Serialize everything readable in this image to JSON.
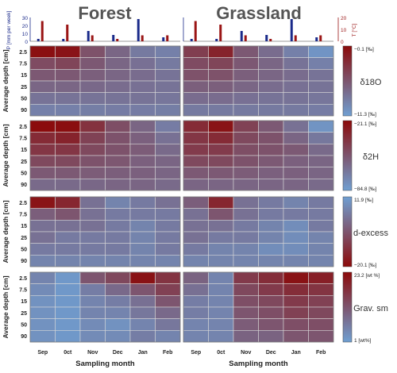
{
  "figure": {
    "panel_titles": [
      "Forest",
      "Grassland"
    ],
    "y_axis_label": "Average depth [cm]",
    "x_axis_label": "Sampling month",
    "x_ticks": [
      "Sep",
      "0ct",
      "Nov",
      "Dec",
      "Jan",
      "Feb"
    ],
    "depth_ticks": [
      "2.5",
      "7.5",
      "15",
      "25",
      "50",
      "90"
    ]
  },
  "colors": {
    "high": "#8b0a0a",
    "low": "#6f9fd2",
    "precip_bar": "#1a2a8a",
    "temp_bar": "#9a1515",
    "grid": "#d8d8d8"
  },
  "chart_data": [
    {
      "type": "bar",
      "panel": "Forest",
      "categories": [
        "Sep",
        "0ct",
        "Nov",
        "Dec",
        "Jan",
        "Feb"
      ],
      "ylabel": "P [mm per week]",
      "ylabel_right": "T [°C]",
      "y_ticks": [
        "30",
        "20",
        "10",
        "0"
      ],
      "y2_ticks": [
        "20",
        "10",
        "0"
      ],
      "series": [
        {
          "name": "P",
          "values": [
            3,
            3,
            13,
            8,
            28,
            5
          ]
        },
        {
          "name": "T",
          "values": [
            17,
            14,
            5,
            2,
            5,
            5
          ]
        }
      ]
    },
    {
      "type": "bar",
      "panel": "Grassland",
      "categories": [
        "Sep",
        "0ct",
        "Nov",
        "Dec",
        "Jan",
        "Feb"
      ],
      "ylabel": "",
      "ylabel_right": "T [°C]",
      "y_ticks": [],
      "y2_ticks": [
        "20",
        "10",
        "0"
      ],
      "series": [
        {
          "name": "P",
          "values": [
            3,
            3,
            13,
            8,
            28,
            5
          ]
        },
        {
          "name": "T",
          "values": [
            17,
            14,
            5,
            2,
            5,
            5
          ]
        }
      ]
    },
    {
      "type": "heatmap",
      "variable": "δ18O",
      "colorbar_title": "δ18O",
      "colorbar_max_label": "−0.1 [‰]",
      "colorbar_min_label": "−11.3 [‰]",
      "color_reversed": false,
      "rows": [
        "2.5",
        "7.5",
        "15",
        "25",
        "50",
        "90"
      ],
      "columns": [
        "Sep",
        "0ct",
        "Nov",
        "Dec",
        "Jan",
        "Feb"
      ],
      "forest": [
        [
          -0.5,
          -0.8,
          -5.5,
          -7.0,
          -8.5,
          -9.0
        ],
        [
          -5.0,
          -4.5,
          -6.0,
          -7.0,
          -7.8,
          -8.5
        ],
        [
          -6.0,
          -6.0,
          -6.5,
          -7.0,
          -7.5,
          -8.0
        ],
        [
          -7.0,
          -7.0,
          -7.2,
          -7.5,
          -7.8,
          -8.0
        ],
        [
          -8.0,
          -8.0,
          -8.0,
          -8.0,
          -8.0,
          -8.2
        ],
        [
          -9.0,
          -9.0,
          -8.8,
          -8.7,
          -8.7,
          -8.8
        ]
      ],
      "grassland": [
        [
          -4.0,
          -2.0,
          -6.0,
          -7.5,
          -9.0,
          -10.5
        ],
        [
          -5.0,
          -4.5,
          -6.0,
          -7.0,
          -8.0,
          -9.0
        ],
        [
          -5.5,
          -5.5,
          -6.5,
          -7.0,
          -7.5,
          -8.0
        ],
        [
          -6.5,
          -6.5,
          -7.0,
          -7.5,
          -7.8,
          -8.0
        ],
        [
          -7.5,
          -7.5,
          -7.8,
          -8.0,
          -8.0,
          -8.2
        ],
        [
          -8.5,
          -8.5,
          -8.5,
          -8.5,
          -8.5,
          -8.7
        ]
      ]
    },
    {
      "type": "heatmap",
      "variable": "δ2H",
      "colorbar_title": "δ2H",
      "colorbar_max_label": "−21.1 [‰]",
      "colorbar_min_label": "−84.8 [‰]",
      "color_reversed": false,
      "rows": [
        "2.5",
        "7.5",
        "15",
        "25",
        "50",
        "90"
      ],
      "columns": [
        "Sep",
        "0ct",
        "Nov",
        "Dec",
        "Jan",
        "Feb"
      ],
      "forest": [
        [
          -22,
          -23,
          -38,
          -50,
          -60,
          -70
        ],
        [
          -35,
          -32,
          -45,
          -52,
          -58,
          -65
        ],
        [
          -40,
          -40,
          -48,
          -52,
          -56,
          -62
        ],
        [
          -48,
          -48,
          -52,
          -54,
          -58,
          -60
        ],
        [
          -55,
          -55,
          -56,
          -57,
          -58,
          -60
        ],
        [
          -62,
          -62,
          -61,
          -60,
          -60,
          -62
        ]
      ],
      "grassland": [
        [
          -35,
          -25,
          -45,
          -55,
          -65,
          -80
        ],
        [
          -40,
          -35,
          -48,
          -52,
          -60,
          -68
        ],
        [
          -42,
          -42,
          -50,
          -52,
          -55,
          -62
        ],
        [
          -48,
          -48,
          -52,
          -55,
          -58,
          -60
        ],
        [
          -55,
          -55,
          -56,
          -58,
          -58,
          -60
        ],
        [
          -60,
          -60,
          -60,
          -60,
          -60,
          -62
        ]
      ]
    },
    {
      "type": "heatmap",
      "variable": "d-excess",
      "colorbar_title": "d-excess",
      "colorbar_max_label": "11.9 [‰]",
      "colorbar_min_label": "−20.1 [‰]",
      "color_reversed": true,
      "rows": [
        "2.5",
        "7.5",
        "15",
        "25",
        "50",
        "90"
      ],
      "columns": [
        "Sep",
        "0ct",
        "Nov",
        "Dec",
        "Jan",
        "Feb"
      ],
      "forest": [
        [
          -18,
          -14,
          2,
          6,
          4,
          2
        ],
        [
          -2,
          -4,
          2,
          4,
          4,
          4
        ],
        [
          2,
          2,
          2,
          4,
          6,
          4
        ],
        [
          2,
          4,
          4,
          4,
          6,
          4
        ],
        [
          4,
          4,
          4,
          4,
          6,
          4
        ],
        [
          6,
          6,
          6,
          6,
          6,
          6
        ]
      ],
      "grassland": [
        [
          -2,
          -14,
          2,
          4,
          6,
          4
        ],
        [
          2,
          -4,
          2,
          4,
          4,
          4
        ],
        [
          2,
          2,
          4,
          6,
          8,
          4
        ],
        [
          2,
          4,
          4,
          6,
          8,
          6
        ],
        [
          4,
          6,
          6,
          8,
          8,
          6
        ],
        [
          6,
          6,
          6,
          6,
          6,
          6
        ]
      ]
    },
    {
      "type": "heatmap",
      "variable": "Grav. sm",
      "colorbar_title": "Grav. sm",
      "colorbar_max_label": "23.2 [wt %]",
      "colorbar_min_label": "1 [wt%]",
      "color_reversed": false,
      "rows": [
        "2.5",
        "7.5",
        "15",
        "25",
        "50",
        "90"
      ],
      "columns": [
        "Sep",
        "0ct",
        "Nov",
        "Dec",
        "Jan",
        "Feb"
      ],
      "forest": [
        [
          5,
          2,
          12,
          14,
          22,
          17
        ],
        [
          4,
          2,
          6,
          9,
          12,
          15
        ],
        [
          3,
          2,
          5,
          6,
          8,
          12
        ],
        [
          3,
          2,
          5,
          5,
          7,
          9
        ],
        [
          3,
          2,
          4,
          3,
          5,
          7
        ],
        [
          3,
          2,
          4,
          4,
          6,
          5
        ]
      ],
      "grassland": [
        [
          10,
          5,
          16,
          18,
          22,
          20
        ],
        [
          8,
          5,
          14,
          16,
          18,
          17
        ],
        [
          6,
          5,
          13,
          14,
          16,
          15
        ],
        [
          6,
          5,
          12,
          13,
          15,
          14
        ],
        [
          5,
          5,
          11,
          12,
          13,
          13
        ],
        [
          5,
          5,
          10,
          10,
          12,
          12
        ]
      ]
    }
  ]
}
